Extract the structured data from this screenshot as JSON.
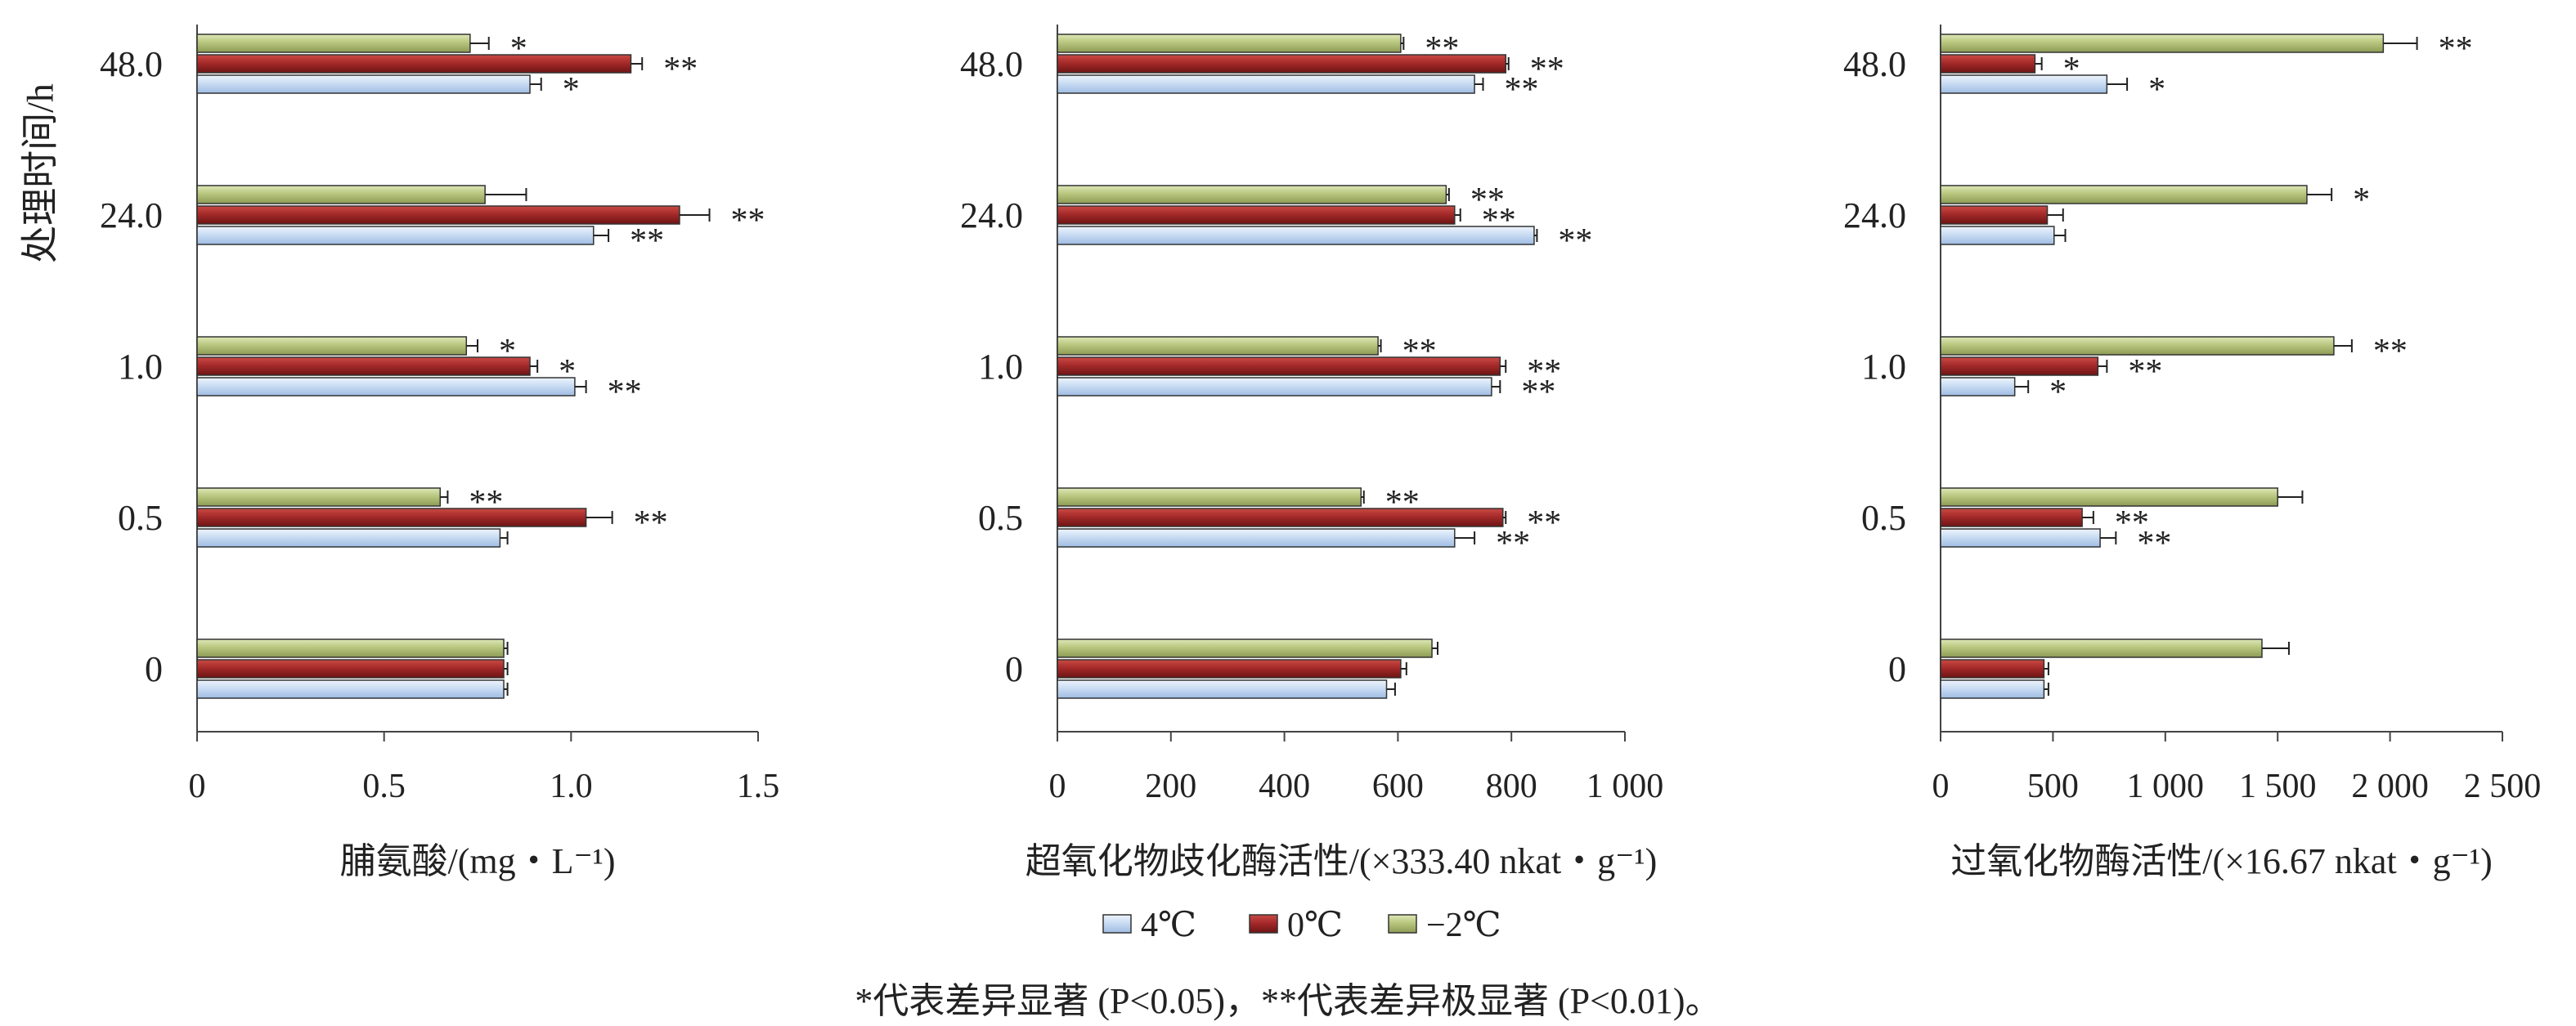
{
  "y_axis_label": "处理时间/h",
  "legend": {
    "entries": [
      {
        "label": "4℃",
        "color": "#c5d9f1"
      },
      {
        "label": "0℃",
        "color": "#a52a2a"
      },
      {
        "label": "−2℃",
        "color": "#b3c27a"
      }
    ]
  },
  "note": "*代表差异显著 (P<0.05)，**代表差异极显著 (P<0.01)。",
  "chart_data": [
    {
      "type": "bar",
      "orientation": "horizontal",
      "categories": [
        "0",
        "0.5",
        "1.0",
        "24.0",
        "48.0"
      ],
      "xlabel": "脯氨酸/(mg・L⁻¹)",
      "xlim": [
        0,
        1.5
      ],
      "xticks": [
        "0",
        "0.5",
        "1.0",
        "1.5"
      ],
      "xtick_values": [
        0,
        0.5,
        1.0,
        1.5
      ],
      "series": [
        {
          "name": "4℃",
          "values": [
            0.82,
            0.81,
            1.01,
            1.06,
            0.89
          ],
          "errors": [
            0.01,
            0.02,
            0.03,
            0.04,
            0.03
          ],
          "marks": [
            "",
            "",
            "**",
            "**",
            "*"
          ]
        },
        {
          "name": "0℃",
          "values": [
            0.82,
            1.04,
            0.89,
            1.29,
            1.16
          ],
          "errors": [
            0.01,
            0.07,
            0.02,
            0.08,
            0.03
          ],
          "marks": [
            "",
            "**",
            "*",
            "**",
            "**"
          ]
        },
        {
          "name": "−2℃",
          "values": [
            0.82,
            0.65,
            0.72,
            0.77,
            0.73
          ],
          "errors": [
            0.01,
            0.02,
            0.03,
            0.11,
            0.05
          ],
          "marks": [
            "",
            "**",
            "*",
            "",
            "*"
          ]
        }
      ]
    },
    {
      "type": "bar",
      "orientation": "horizontal",
      "categories": [
        "0",
        "0.5",
        "1.0",
        "24.0",
        "48.0"
      ],
      "xlabel": "超氧化物歧化酶活性/(×333.40 nkat・g⁻¹)",
      "xlim": [
        0,
        1000
      ],
      "xticks": [
        "0",
        "200",
        "400",
        "600",
        "800",
        "1 000"
      ],
      "xtick_values": [
        0,
        200,
        400,
        600,
        800,
        1000
      ],
      "series": [
        {
          "name": "4℃",
          "values": [
            580,
            700,
            765,
            840,
            735
          ],
          "errors": [
            15,
            35,
            15,
            5,
            15
          ],
          "marks": [
            "",
            "**",
            "**",
            "**",
            "**"
          ]
        },
        {
          "name": "0℃",
          "values": [
            605,
            785,
            780,
            700,
            790
          ],
          "errors": [
            10,
            5,
            10,
            10,
            5
          ],
          "marks": [
            "",
            "**",
            "**",
            "**",
            "**"
          ]
        },
        {
          "name": "−2℃",
          "values": [
            660,
            535,
            565,
            685,
            605
          ],
          "errors": [
            10,
            5,
            5,
            5,
            5
          ],
          "marks": [
            "",
            "**",
            "**",
            "**",
            "**"
          ]
        }
      ]
    },
    {
      "type": "bar",
      "orientation": "horizontal",
      "categories": [
        "0",
        "0.5",
        "1.0",
        "24.0",
        "48.0"
      ],
      "xlabel": "过氧化物酶活性/(×16.67 nkat・g⁻¹)",
      "xlim": [
        0,
        2500
      ],
      "xticks": [
        "0",
        "500",
        "1 000",
        "1 500",
        "2 000",
        "2 500"
      ],
      "xtick_values": [
        0,
        500,
        1000,
        1500,
        2000,
        2500
      ],
      "series": [
        {
          "name": "4℃",
          "values": [
            460,
            710,
            330,
            505,
            740
          ],
          "errors": [
            20,
            70,
            60,
            50,
            90
          ],
          "marks": [
            "",
            "**",
            "*",
            "",
            "*"
          ]
        },
        {
          "name": "0℃",
          "values": [
            460,
            630,
            700,
            475,
            420
          ],
          "errors": [
            20,
            50,
            40,
            70,
            30
          ],
          "marks": [
            "",
            "**",
            "**",
            "",
            "*"
          ]
        },
        {
          "name": "−2℃",
          "values": [
            1430,
            1500,
            1750,
            1630,
            1970
          ],
          "errors": [
            120,
            110,
            80,
            110,
            150
          ],
          "marks": [
            "",
            "",
            "**",
            "*",
            "**"
          ]
        }
      ]
    }
  ]
}
